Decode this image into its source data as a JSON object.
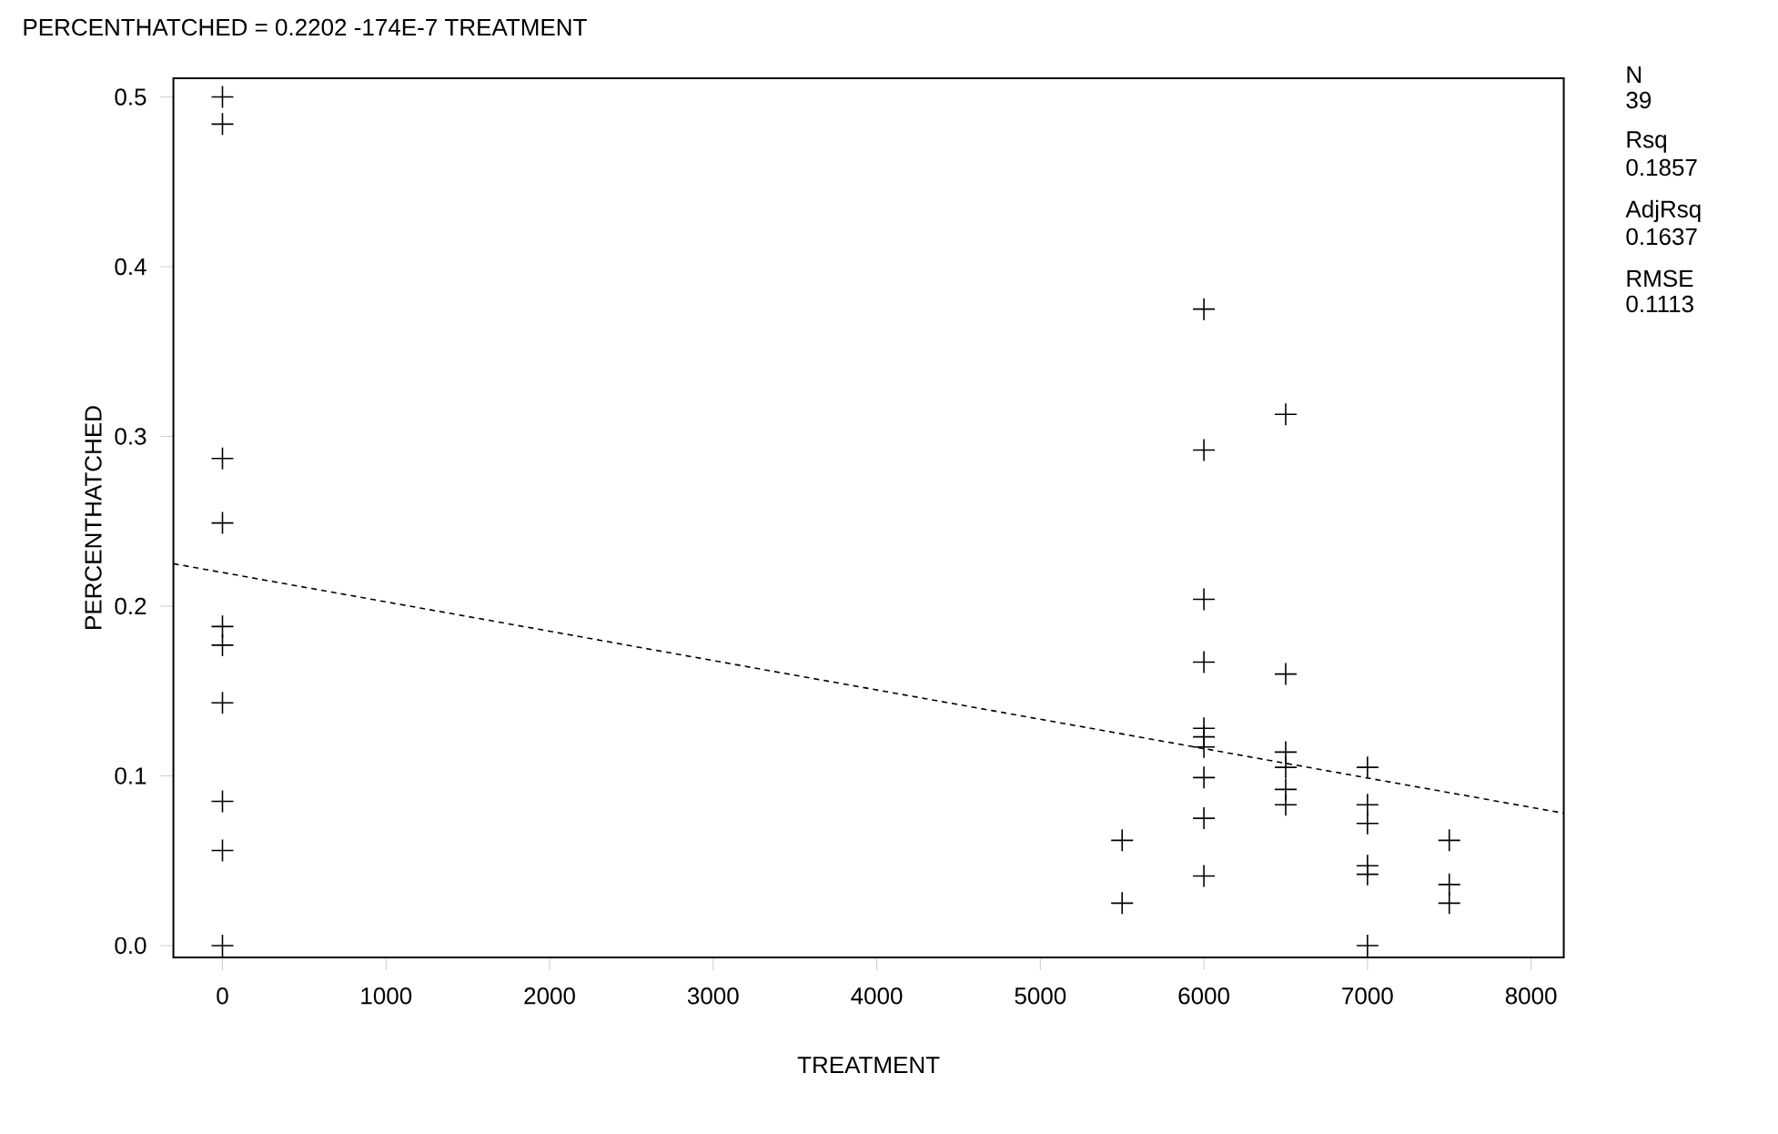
{
  "chart_data": {
    "type": "scatter",
    "title": "PERCENTHATCHED = 0.2202 -174E-7 TREATMENT",
    "xlabel": "TREATMENT",
    "ylabel": "PERCENTHATCHED",
    "annotations": [
      "N",
      "39",
      "Rsq",
      "0.1857",
      "AdjRsq",
      "0.1637",
      "RMSE",
      "0.1113"
    ],
    "series": [
      {
        "color": "#000000",
        "marker": "cross",
        "x": [
          0,
          0,
          0,
          0,
          0,
          0,
          0,
          0,
          0,
          0,
          5500,
          5500,
          6000,
          6000,
          6000,
          6000,
          6000,
          6000,
          6000,
          6000,
          6000,
          6000,
          6500,
          6500,
          6500,
          6500,
          6500,
          6500,
          7000,
          7000,
          7000,
          7000,
          7000,
          7000,
          7500,
          7500,
          7500
        ],
        "values": [
          0.5,
          0.484,
          0.287,
          0.249,
          0.188,
          0.177,
          0.143,
          0.085,
          0.056,
          0.0,
          0.062,
          0.025,
          0.375,
          0.292,
          0.204,
          0.167,
          0.128,
          0.123,
          0.117,
          0.099,
          0.075,
          0.041,
          0.313,
          0.16,
          0.114,
          0.105,
          0.092,
          0.083,
          0.105,
          0.083,
          0.072,
          0.047,
          0.042,
          0.0,
          0.062,
          0.036,
          0.025
        ]
      },
      {
        "type": "line",
        "color": "#000000",
        "line_style": "dashed",
        "marker": "none",
        "x": [
          -300,
          8200
        ],
        "values": [
          0.225,
          0.078
        ]
      }
    ],
    "xlim": [
      -300,
      8200
    ],
    "ylim": [
      -0.007,
      0.511
    ],
    "xticks": [
      0,
      1000,
      2000,
      3000,
      4000,
      5000,
      6000,
      7000,
      8000
    ],
    "yticks": [
      {
        "value": 0,
        "label": "0.0"
      },
      {
        "value": 0.1,
        "label": "0.1"
      },
      {
        "value": 0.2,
        "label": "0.2"
      },
      {
        "value": 0.3,
        "label": "0.3"
      },
      {
        "value": 0.4,
        "label": "0.4"
      },
      {
        "value": 0.5,
        "label": "0.5"
      }
    ]
  }
}
